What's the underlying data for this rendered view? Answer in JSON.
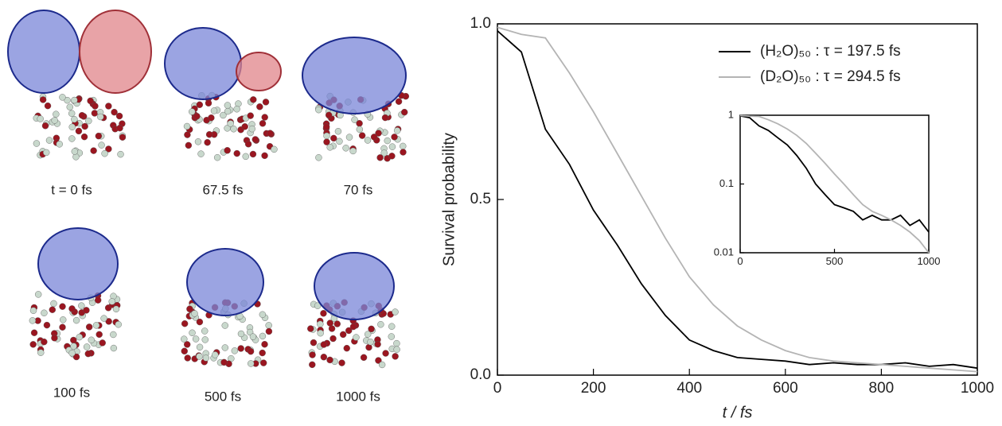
{
  "snapshots": {
    "labels": [
      "t = 0 fs",
      "67.5 fs",
      "70 fs",
      "100 fs",
      "500 fs",
      "1000 fs"
    ]
  },
  "chart_data": [
    {
      "type": "line",
      "xlabel": "t / fs",
      "ylabel": "Survival probability",
      "x": [
        0,
        50,
        100,
        150,
        200,
        250,
        300,
        350,
        400,
        450,
        500,
        550,
        600,
        650,
        700,
        750,
        800,
        850,
        900,
        950,
        1000
      ],
      "series": [
        {
          "name": "(H₂O)₅₀ : τ = 197.5 fs",
          "color": "#000000",
          "values": [
            0.98,
            0.92,
            0.7,
            0.6,
            0.47,
            0.37,
            0.26,
            0.17,
            0.1,
            0.07,
            0.05,
            0.045,
            0.04,
            0.03,
            0.035,
            0.03,
            0.03,
            0.035,
            0.025,
            0.03,
            0.02
          ]
        },
        {
          "name": "(D₂O)₅₀ : τ = 294.5 fs",
          "color": "#b4b4b4",
          "values": [
            0.99,
            0.97,
            0.96,
            0.86,
            0.75,
            0.63,
            0.51,
            0.39,
            0.28,
            0.2,
            0.14,
            0.1,
            0.07,
            0.05,
            0.04,
            0.035,
            0.03,
            0.025,
            0.02,
            0.015,
            0.01
          ]
        }
      ],
      "xlim": [
        0,
        1000
      ],
      "xticks": [
        0,
        200,
        400,
        600,
        800,
        1000
      ],
      "ylim": [
        0,
        1
      ],
      "yticks": [
        {
          "value": 0,
          "label": "0.0"
        },
        0.5,
        {
          "value": 1,
          "label": "1.0"
        }
      ],
      "legend": "upper right"
    },
    {
      "type": "line",
      "log_y": true,
      "x": [
        0,
        50,
        100,
        150,
        200,
        250,
        300,
        350,
        400,
        450,
        500,
        550,
        600,
        650,
        700,
        750,
        800,
        850,
        900,
        950,
        1000
      ],
      "series": [
        {
          "color": "#000000",
          "values": [
            0.98,
            0.92,
            0.7,
            0.6,
            0.47,
            0.37,
            0.26,
            0.17,
            0.1,
            0.07,
            0.05,
            0.045,
            0.04,
            0.03,
            0.035,
            0.03,
            0.03,
            0.035,
            0.025,
            0.03,
            0.02
          ]
        },
        {
          "color": "#b4b4b4",
          "values": [
            0.99,
            0.97,
            0.96,
            0.86,
            0.75,
            0.63,
            0.51,
            0.39,
            0.28,
            0.2,
            0.14,
            0.1,
            0.07,
            0.05,
            0.04,
            0.035,
            0.03,
            0.025,
            0.02,
            0.015,
            0.01
          ]
        }
      ],
      "xlim": [
        0,
        1000
      ],
      "xticks": [
        0,
        500,
        1000
      ],
      "ylim": [
        0.01,
        1
      ],
      "yticks": [
        0.01,
        0.1,
        1
      ]
    }
  ]
}
